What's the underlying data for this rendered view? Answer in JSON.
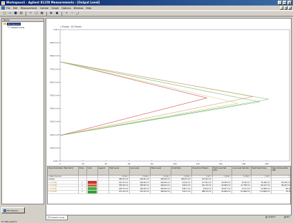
{
  "window": {
    "title": "Workspace1 - Agilent 81150 Measurements - [Output Level]"
  },
  "menubar": {
    "items": [
      "File",
      "Edit",
      "Measurement",
      "Control",
      "Graph",
      "Options",
      "Window",
      "Help"
    ]
  },
  "toolbar": {
    "icons": [
      "new-icon",
      "open-icon",
      "save-icon",
      "print-icon",
      "cut-icon",
      "copy-icon",
      "paste-icon",
      "run-icon",
      "stop-icon",
      "zoom-in-icon",
      "zoom-out-icon",
      "fit-icon"
    ]
  },
  "tree": {
    "header": "Name",
    "root_label": "Workspace1",
    "child_label": "Output Level"
  },
  "left_button": "Workspace",
  "tab": {
    "label": "Output Level"
  },
  "status": {
    "left": "For Help, press F1",
    "sys": "System",
    "run": "Run"
  },
  "chart_data": {
    "type": "line",
    "title": "1 Pulses · 81 Points",
    "y_ticks": [
      "1.00 V",
      "900.0 mV",
      "800.0 mV",
      "700.0 mV",
      "600.0 mV",
      "500.0 mV",
      "400.0 mV",
      "300.0 mV",
      "200.0 mV",
      "100.0 mV",
      "0.00 V"
    ],
    "x_ticks": [
      "0",
      "20",
      "40",
      "60",
      "80",
      "100",
      "120",
      "140",
      "160",
      "180"
    ],
    "ylim": [
      0,
      1.0
    ],
    "xlim": [
      0,
      200
    ],
    "series": [
      {
        "color": "#88c888",
        "points": [
          [
            0,
            0.755
          ],
          [
            182,
            0.47
          ],
          [
            0,
            0.195
          ]
        ]
      },
      {
        "color": "#e0a070",
        "points": [
          [
            0,
            0.755
          ],
          [
            168,
            0.49
          ],
          [
            0,
            0.195
          ]
        ]
      },
      {
        "color": "#d05050",
        "points": [
          [
            0,
            0.755
          ],
          [
            128,
            0.48
          ],
          [
            0,
            0.195
          ]
        ]
      },
      {
        "color": "#c0d080",
        "points": [
          [
            0,
            0.755
          ],
          [
            155,
            0.44
          ],
          [
            0,
            0.195
          ]
        ]
      },
      {
        "color": "#70b070",
        "points": [
          [
            0,
            0.755
          ],
          [
            174,
            0.45
          ],
          [
            0,
            0.195
          ]
        ]
      }
    ]
  },
  "grid": {
    "headers": [
      "Pulse Parameter (Standard)",
      "Show",
      "Color",
      "Legend",
      "High Level",
      "Low Level",
      "Mean Level",
      "Amplitude",
      "Overshoot Margin",
      "High Level Set Zero",
      "Low Level Set Zero",
      "Peak Peak Noise",
      "Signal Noise Ratio (dB)"
    ],
    "units": [
      "",
      "",
      "",
      "",
      "[ V/div ]",
      "[ V/div ]",
      "[ V/div ]",
      "[ V/div ]",
      "[ mV ]",
      "[ V/div ]",
      "[ V/div ]",
      "[ mV ]",
      "[ ]"
    ],
    "group_label": "New Channel",
    "rows": [
      {
        "name": "Pulse",
        "color": "",
        "cells": [
          "869.53 mV",
          "200.00 mV",
          "400.00 mV",
          "669.53 mV",
          "670.02 mV",
          "",
          "",
          "",
          ""
        ]
      },
      {
        "name": "1.1 (Limit)",
        "color": "#d03030",
        "cells": [
          "813.75 mV",
          "196.00 mV",
          "400.00 mV",
          "613.6 mV",
          "677.81 mV",
          "20.563 mV",
          "25.50 mV",
          "76.180 mV",
          "66.102 mV"
        ]
      },
      {
        "name": "1.1 (Limit)",
        "color": "#d06030",
        "cells": [
          "830.00 mV",
          "198.00 mV",
          "400.00 mV",
          "632.0 mV",
          "641.79 mV",
          "20.684 mV",
          "11.738 mV",
          "96.147 mV",
          "86.207 mV"
        ]
      },
      {
        "name": "1.1 (Limit)",
        "color": "#40b040",
        "cells": [
          "836.74 mV",
          "190.00 mV",
          "400.00 mV",
          "646.7 mV",
          "670.6 mV",
          "30.677 mV",
          "21.31 mV",
          "71.838 mV",
          "86.12"
        ]
      },
      {
        "name": "1.1 (Limit)",
        "color": "#30a030",
        "cells": [
          "871.44 mV",
          "197.32 mV",
          "400.00 mV",
          "674.1 mV",
          "880.70 mV",
          "22.600 mV",
          "8.1490 mV",
          "71.4400 mV",
          "76.18"
        ]
      }
    ]
  }
}
